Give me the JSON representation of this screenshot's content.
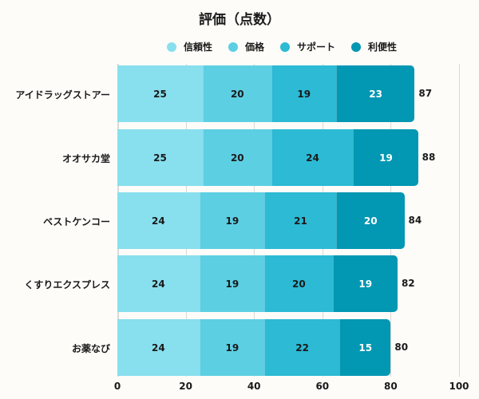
{
  "chart_data": {
    "type": "bar",
    "orientation": "horizontal",
    "stacked": true,
    "title": "評価（点数）",
    "xlabel": "",
    "ylabel": "",
    "xlim": [
      0,
      100
    ],
    "xticks": [
      0,
      20,
      40,
      60,
      80,
      100
    ],
    "grid": true,
    "legend_position": "top",
    "categories": [
      "アイドラッグストアー",
      "オオサカ堂",
      "ベストケンコー",
      "くすりエクスプレス",
      "お薬なび"
    ],
    "series": [
      {
        "name": "信頼性",
        "color": "#88dfee",
        "label_color": "#1a1a1a",
        "values": [
          25,
          25,
          24,
          24,
          24
        ]
      },
      {
        "name": "価格",
        "color": "#5dcfe3",
        "label_color": "#1a1a1a",
        "values": [
          20,
          20,
          19,
          19,
          19
        ]
      },
      {
        "name": "サポート",
        "color": "#2cbad5",
        "label_color": "#1a1a1a",
        "values": [
          19,
          24,
          21,
          20,
          22
        ]
      },
      {
        "name": "利便性",
        "color": "#0297b2",
        "label_color": "#ffffff",
        "values": [
          23,
          19,
          20,
          19,
          15
        ]
      }
    ],
    "totals": [
      87,
      88,
      84,
      82,
      80
    ]
  }
}
